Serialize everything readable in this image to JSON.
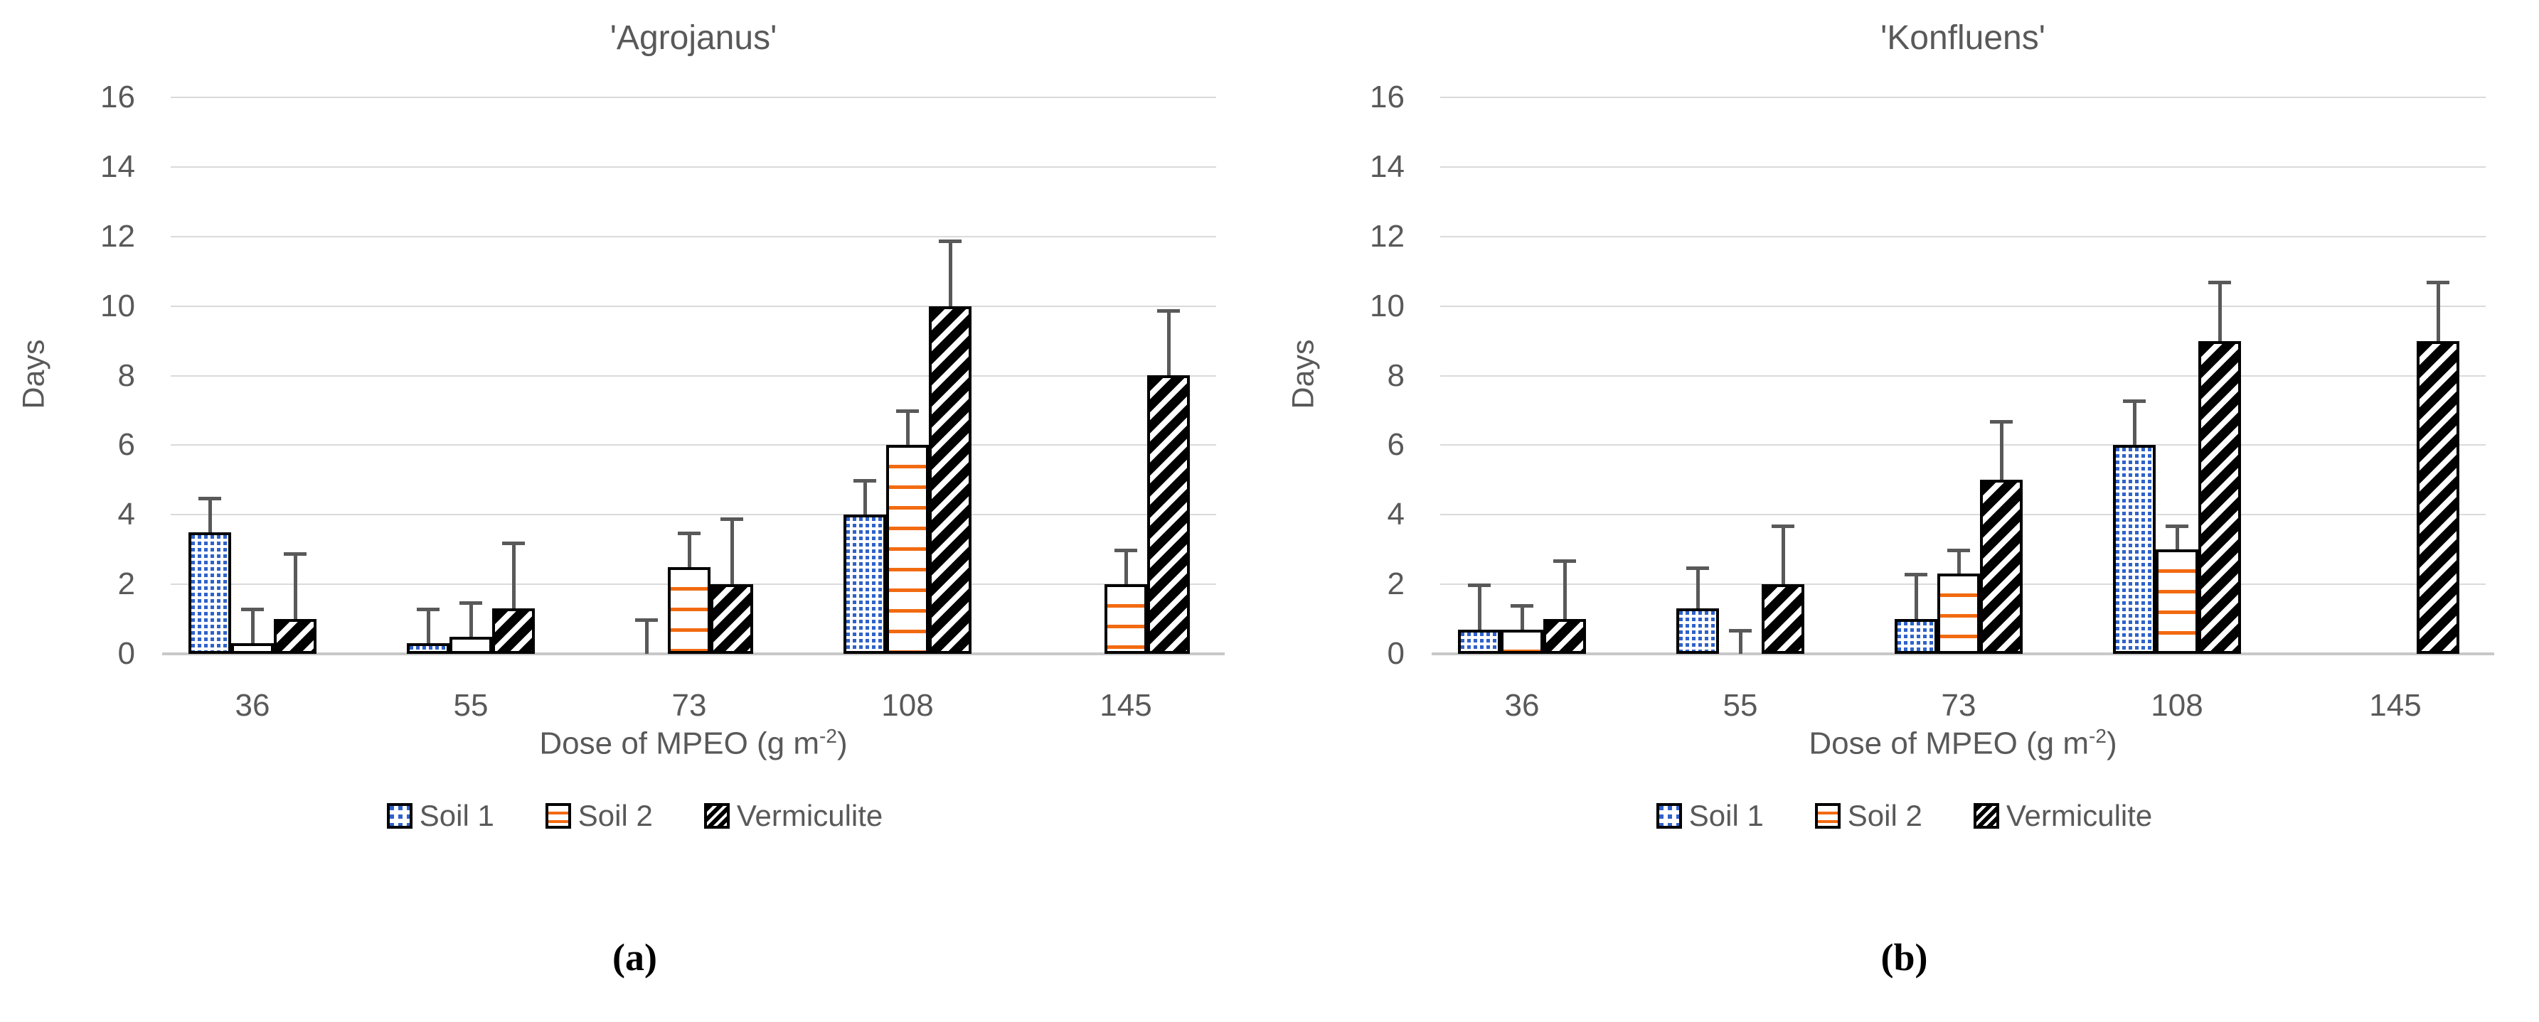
{
  "figure": {
    "panel_labels": [
      "(a)",
      "(b)"
    ],
    "xlabel_prefix": "Dose of MPEO (g m",
    "xlabel_sup": "-2",
    "xlabel_suffix": ")"
  },
  "colors": {
    "soil1_blue": "#2f62c9",
    "soil2_orange": "#f26a10",
    "vermiculite_black": "#000000",
    "error_bar_gray": "#595959",
    "gridline_gray": "#dadada",
    "axis_line_gray": "#c8c8c8",
    "text_gray": "#595959"
  },
  "chart_data": [
    {
      "type": "bar",
      "title": "'Agrojanus'",
      "ylabel": "Days",
      "xlabel": "Dose of MPEO (g m-2)",
      "categories": [
        "36",
        "55",
        "73",
        "108",
        "145"
      ],
      "ylim": [
        0,
        16
      ],
      "ytick_step": 2,
      "grid": true,
      "legend_position": "bottom",
      "series": [
        {
          "name": "Soil 1",
          "pattern": "blue-dots",
          "values": [
            3.5,
            0.3,
            0,
            4,
            null
          ],
          "errors_up": [
            1.0,
            1.0,
            1.0,
            1.0,
            null
          ]
        },
        {
          "name": "Soil 2",
          "pattern": "orange-hlines",
          "values": [
            0.3,
            0.5,
            2.5,
            6,
            2
          ],
          "errors_up": [
            1.0,
            1.0,
            1.0,
            1.0,
            1.0
          ]
        },
        {
          "name": "Vermiculite",
          "pattern": "black-diagonal",
          "values": [
            1,
            1.3,
            2,
            10,
            8
          ],
          "errors_up": [
            1.9,
            1.9,
            1.9,
            1.9,
            1.9
          ]
        }
      ]
    },
    {
      "type": "bar",
      "title": "'Konfluens'",
      "ylabel": "Days",
      "xlabel": "Dose of MPEO (g m-2)",
      "categories": [
        "36",
        "55",
        "73",
        "108",
        "145"
      ],
      "ylim": [
        0,
        16
      ],
      "ytick_step": 2,
      "grid": true,
      "legend_position": "bottom",
      "series": [
        {
          "name": "Soil 1",
          "pattern": "blue-dots",
          "values": [
            0.7,
            1.3,
            1,
            6,
            null
          ],
          "errors_up": [
            1.3,
            1.2,
            1.3,
            1.3,
            null
          ]
        },
        {
          "name": "Soil 2",
          "pattern": "orange-hlines",
          "values": [
            0.7,
            0,
            2.3,
            3,
            null
          ],
          "errors_up": [
            0.7,
            0.7,
            0.7,
            0.7,
            null
          ]
        },
        {
          "name": "Vermiculite",
          "pattern": "black-diagonal",
          "values": [
            1,
            2,
            5,
            9,
            9
          ],
          "errors_up": [
            1.7,
            1.7,
            1.7,
            1.7,
            1.7
          ]
        }
      ]
    }
  ]
}
